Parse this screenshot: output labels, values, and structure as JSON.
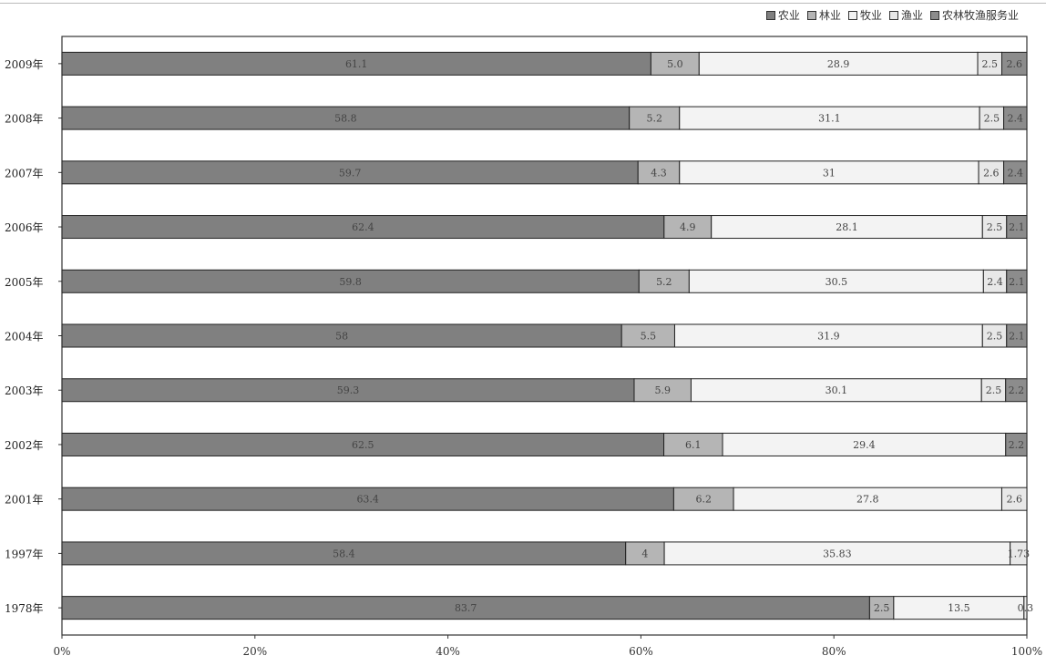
{
  "chart_data": {
    "type": "bar",
    "orientation": "horizontal",
    "stacked": "percent",
    "categories": [
      "2009年",
      "2008年",
      "2007年",
      "2006年",
      "2005年",
      "2004年",
      "2003年",
      "2002年",
      "2001年",
      "1997年",
      "1978年"
    ],
    "series": [
      {
        "name": "农业",
        "color": "#808080",
        "values": [
          61.1,
          58.8,
          59.7,
          62.4,
          59.8,
          58,
          59.3,
          62.5,
          63.4,
          58.4,
          83.7
        ],
        "labels": [
          "61.1",
          "58.8",
          "59.7",
          "62.4",
          "59.8",
          "58",
          "59.3",
          "62.5",
          "63.4",
          "58.4",
          "83.7"
        ]
      },
      {
        "name": "林业",
        "color": "#b5b5b5",
        "values": [
          5.0,
          5.2,
          4.3,
          4.9,
          5.2,
          5.5,
          5.9,
          6.1,
          6.2,
          4,
          2.5
        ],
        "labels": [
          "5.0",
          "5.2",
          "4.3",
          "4.9",
          "5.2",
          "5.5",
          "5.9",
          "6.1",
          "6.2",
          "4",
          "2.5"
        ]
      },
      {
        "name": "牧业",
        "color": "#f3f3f3",
        "values": [
          28.9,
          31.1,
          31,
          28.1,
          30.5,
          31.9,
          30.1,
          29.4,
          27.8,
          35.83,
          13.5
        ],
        "labels": [
          "28.9",
          "31.1",
          "31",
          "28.1",
          "30.5",
          "31.9",
          "30.1",
          "29.4",
          "27.8",
          "35.83",
          "13.5"
        ]
      },
      {
        "name": "渔业",
        "color": "#e8e8e8",
        "values": [
          2.5,
          2.5,
          2.6,
          2.5,
          2.4,
          2.5,
          2.5,
          0,
          2.6,
          1.73,
          0.3
        ],
        "labels": [
          "2.5",
          "2.5",
          "2.6",
          "2.5",
          "2.4",
          "2.5",
          "2.5",
          "",
          "2.6",
          "1.73",
          "0.3"
        ]
      },
      {
        "name": "农林牧渔服务业",
        "color": "#8c8c8c",
        "values": [
          2.6,
          2.4,
          2.4,
          2.1,
          2.1,
          2.1,
          2.2,
          2.2,
          0,
          0,
          0
        ],
        "labels": [
          "2.6",
          "2.4",
          "2.4",
          "2.1",
          "2.1",
          "2.1",
          "2.2",
          "2.2",
          "",
          "",
          ""
        ]
      }
    ],
    "xlim": [
      0,
      100
    ],
    "xticks": [
      "0%",
      "20%",
      "40%",
      "60%",
      "80%",
      "100%"
    ],
    "legend": "top-right",
    "grid": false
  }
}
